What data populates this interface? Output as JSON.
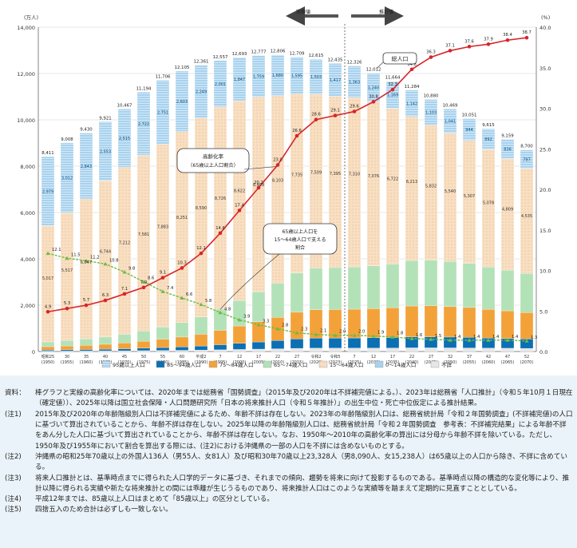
{
  "chart_data": {
    "type": "bar",
    "left_unit": "(万人)",
    "right_unit": "(%)",
    "left_ticks": [
      "0",
      "2,000",
      "4,000",
      "6,000",
      "8,000",
      "10,000",
      "12,000",
      "14,000"
    ],
    "right_ticks": [
      "0.0",
      "5.0",
      "10.0",
      "15.0",
      "20.0",
      "25.0",
      "30.0",
      "35.0",
      "40.0"
    ],
    "ylim_left": [
      0,
      14000
    ],
    "ylim_right": [
      0,
      40
    ],
    "x_labels": [
      [
        "昭和25",
        "(1950)"
      ],
      [
        "30",
        "(1955)"
      ],
      [
        "35",
        "(1960)"
      ],
      [
        "40",
        "(1965)"
      ],
      [
        "45",
        "(1970)"
      ],
      [
        "50",
        "(1975)"
      ],
      [
        "55",
        "(1980)"
      ],
      [
        "60",
        "(1985)"
      ],
      [
        "平成2",
        "(1990)"
      ],
      [
        "7",
        "(1995)"
      ],
      [
        "12",
        "(2000)"
      ],
      [
        "17",
        "(2005)"
      ],
      [
        "22",
        "(2010)"
      ],
      [
        "27",
        "(2015)"
      ],
      [
        "令和2",
        "(2020)"
      ],
      [
        "令和5",
        "(2023)"
      ],
      [
        "7",
        "(2025)"
      ],
      [
        "12",
        "(2030)"
      ],
      [
        "17",
        "(2035)"
      ],
      [
        "22",
        "(2040)"
      ],
      [
        "27",
        "(2045)"
      ],
      [
        "32",
        "(2050)"
      ],
      [
        "37",
        "(2055)"
      ],
      [
        "42",
        "(2060)"
      ],
      [
        "47",
        "(2065)"
      ],
      [
        "52",
        "(2070)"
      ]
    ],
    "series": [
      {
        "name": "95歳以上人口",
        "color": "#a8d2ee"
      },
      {
        "name": "85～94歳人口",
        "color": "#0b6fb3"
      },
      {
        "name": "75～84歳人口",
        "color": "#f3a23a"
      },
      {
        "name": "65～74歳人口",
        "color": "#b4e2b8"
      },
      {
        "name": "15～64歳人口",
        "color": "#f9dfc2"
      },
      {
        "name": "0～14歳人口",
        "color": "#a8d2ee"
      },
      {
        "name": "不詳",
        "color": "#e6e6e6"
      }
    ],
    "totals": [
      8411,
      9008,
      9430,
      9921,
      10467,
      11194,
      11706,
      12105,
      12361,
      12557,
      12693,
      12777,
      12806,
      12709,
      12615,
      12435,
      12326,
      12012,
      11664,
      11284,
      10880,
      10469,
      10051,
      9615,
      9159,
      8700
    ],
    "estimated_0_14": [
      2979,
      3012,
      2843,
      2553,
      2515,
      2722,
      2751,
      2603,
      2249,
      2001,
      1847,
      1759,
      1680,
      1595,
      1503,
      1417,
      1363,
      1240,
      1169,
      1142,
      1103,
      1041,
      944,
      892,
      836,
      797
    ],
    "estimated_15_64": [
      5017,
      5517,
      6047,
      6744,
      7212,
      7581,
      7883,
      8251,
      8590,
      8726,
      8622,
      8409,
      8103,
      7735,
      7509,
      7395,
      7310,
      7076,
      6722,
      6213,
      5832,
      5540,
      5307,
      5078,
      4809,
      4535
    ],
    "estimated_65_plus": [
      415,
      479,
      540,
      624,
      740,
      891,
      1065,
      1247,
      1489,
      1828,
      2204,
      2576,
      2948,
      3387,
      3603,
      3623,
      3653,
      3696,
      3773,
      3929,
      3945,
      3888,
      3800,
      3645,
      3514,
      3367
    ],
    "aging_rate": [
      4.9,
      5.3,
      5.7,
      6.3,
      7.1,
      7.9,
      9.1,
      10.3,
      12.1,
      14.6,
      17.4,
      20.2,
      23.0,
      26.6,
      28.6,
      29.1,
      29.6,
      30.8,
      32.3,
      34.8,
      36.3,
      37.1,
      37.6,
      37.9,
      38.4,
      38.7
    ],
    "support_ratio": [
      12.1,
      11.5,
      11.2,
      10.8,
      9.8,
      8.6,
      7.4,
      6.6,
      5.8,
      4.8,
      3.9,
      3.3,
      2.8,
      2.3,
      2.1,
      2.0,
      2.0,
      1.9,
      1.8,
      1.6,
      1.5,
      1.4,
      1.4,
      1.4,
      1.4,
      1.3
    ],
    "total_value_labels": [
      "8,411",
      "9,008",
      "9,430",
      "9,921",
      "10,467",
      "11,194",
      "11,706",
      "12,105",
      "12,361",
      "12,557",
      "12,693",
      "12,777",
      "12,806",
      "12,709",
      "12,615",
      "12,435",
      "12,326",
      "12,012",
      "11,664",
      "11,284",
      "10,880",
      "10,469",
      "10,051",
      "9,615",
      "9,159",
      "8,700"
    ],
    "labels_0_14": [
      "2,979",
      "3,012",
      "2,843",
      "2,553",
      "2,515",
      "2,722",
      "2,751",
      "2,603",
      "2,249",
      "2,001",
      "1,847",
      "1,759",
      "1,680",
      "1,595",
      "1,503",
      "1,417",
      "1,363",
      "1,240",
      "1,169",
      "1,142",
      "1,103",
      "1,041",
      "944",
      "892",
      "836",
      "797"
    ],
    "labels_15_64": [
      "5,017",
      "5,517",
      "6,047",
      "6,744",
      "7,212",
      "7,581",
      "7,883",
      "8,251",
      "8,590",
      "8,726",
      "8,622",
      "8,409",
      "8,103",
      "7,735",
      "7,509",
      "7,395",
      "7,310",
      "7,076",
      "6,722",
      "6,213",
      "5,832",
      "5,540",
      "5,307",
      "5,078",
      "4,809",
      "4,535"
    ],
    "aging_rate_labels": [
      "4.9",
      "5.3",
      "5.7",
      "6.3",
      "7.1",
      "7.9",
      "9.1",
      "10.3",
      "12.1",
      "14.6",
      "17.4",
      "20.2",
      "23.0",
      "26.6",
      "28.6",
      "29.1",
      "29.6",
      "30.8",
      "32.3",
      "34.8",
      "36.3",
      "37.1",
      "37.6",
      "37.9",
      "38.4",
      "38.7"
    ],
    "support_ratio_labels": [
      "12.1",
      "11.5",
      "11.2",
      "10.8",
      "9.8",
      "8.6",
      "7.4",
      "6.6",
      "5.8",
      "4.8",
      "3.9",
      "3.3",
      "2.8",
      "2.3",
      "2.1",
      "2.0",
      "2.0",
      "1.9",
      "1.8",
      "1.6",
      "1.5",
      "1.4",
      "1.4",
      "1.4",
      "1.4",
      "1.3"
    ],
    "annotations": {
      "actual": "実績値",
      "projection": "推計値",
      "total_population": "総人口",
      "aging_rate_l1": "高齢化率",
      "aging_rate_l2": "（65歳以上人口割合）",
      "support_l1": "65歳以上人口を",
      "support_l2": "15～64歳人口で支える",
      "support_l3": "割合"
    },
    "legend_position": "bottom",
    "grid": true
  },
  "notes": [
    {
      "label": "資料：",
      "text": "棒グラフと実線の高齢化率については、2020年までは総務省「国勢調査」（2015年及び2020年は不詳補完値による。）、2023年は総務省「人口推計」（令和５年10月１日現在（確定値））、2025年以降は国立社会保障・人口問題研究所「日本の将来推計人口（令和５年推計）」の出生中位・死亡中位仮定による推計結果。"
    },
    {
      "label": "(注1)",
      "text": "2015年及び2020年の年齢階級別人口は不詳補完値によるため、年齢不詳は存在しない。2023年の年齢階級別人口は、総務省統計局「令和２年国勢調査」(不詳補完値)の人口に基づいて算出されていることから、年齢不詳は存在しない。2025年以降の年齢階級別人口は、総務省統計局「令和２年国勢調査　参考表：不詳補完結果」による年齢不詳をあん分した人口に基づいて算出されていることから、年齢不詳は存在しない。なお、1950年～2010年の高齢化率の算出には分母から年齢不詳を除いている。ただし、1950年及び1955年において割合を算出する際には、(注2)における沖縄県の一部の人口を不詳には含めないものとする。"
    },
    {
      "label": "(注2)",
      "text": "沖縄県の昭和25年70歳以上の外国人136人（男55人、女81人）及び昭和30年70歳以上23,328人（男8,090人、女15,238人）は65歳以上の人口から除き、不詳に含めている。"
    },
    {
      "label": "(注3)",
      "text": "将来人口推計とは、基準時点までに得られた人口学的データに基づき、それまでの傾向、趨勢を将来に向けて投影するものである。基準時点以降の構造的な変化等により、推計以降に得られる実績や新たな将来推計との間には乖離が生じうるものであり、将来推計人口はこのような実績等を踏まえて定期的に見直すこととしている。"
    },
    {
      "label": "(注4)",
      "text": "平成12年までは、85歳以上人口はまとめて「85歳以上」の区分としている。"
    },
    {
      "label": "(注5)",
      "text": "四捨五入のため合計は必ずしも一致しない。"
    }
  ]
}
